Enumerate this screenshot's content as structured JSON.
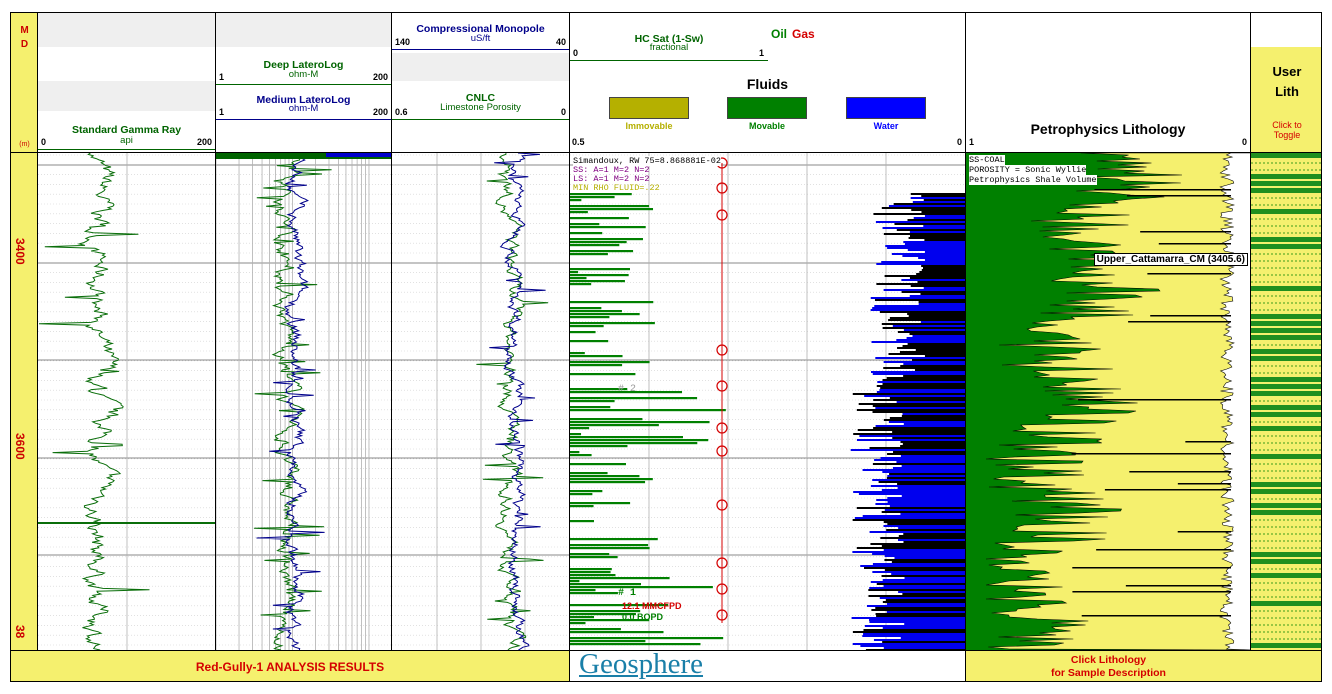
{
  "depth_track": {
    "md_letters": [
      "M",
      "D"
    ],
    "unit": "(m)",
    "labels": [
      "3400",
      "3600",
      "38"
    ]
  },
  "gamma": {
    "title": "Standard Gamma Ray",
    "unit": "api",
    "min": "0",
    "max": "200"
  },
  "resistivity": {
    "deep": {
      "title": "Deep LateroLog",
      "unit": "ohm-M",
      "min": "1",
      "max": "200"
    },
    "medium": {
      "title": "Medium LateroLog",
      "unit": "ohm-M",
      "min": "1",
      "max": "200"
    }
  },
  "porosity": {
    "sonic": {
      "title": "Compressional Monopole",
      "unit": "uS/ft",
      "min": "140",
      "max": "40"
    },
    "cnlc": {
      "title": "CNLC",
      "unit": "Limestone Porosity",
      "min": "0.6",
      "max": "0"
    }
  },
  "fluids": {
    "hcsat": {
      "title": "HC Sat (1-Sw)",
      "unit": "fractional",
      "min": "0",
      "max": "1"
    },
    "oil_label": "Oil",
    "gas_label": "Gas",
    "title": "Fluids",
    "legend": [
      {
        "label": "Immovable",
        "color": "#b5b000"
      },
      {
        "label": "Movable",
        "color": "#008000"
      },
      {
        "label": "Water",
        "color": "#0000ff"
      }
    ],
    "scale_min": "0.5",
    "scale_max": "0",
    "model_lines": [
      "Simandoux, RW 75=8.868881E-02",
      "SS: A=1 M=2 N=2",
      "LS: A=1 M=2 N=2",
      "MIN RHO FLUID=.22"
    ],
    "zone2": "# 2",
    "zone1": "# 1",
    "gas_rate_1": "12.1 MMCFPD",
    "gas_rate_2": "0.0 BOPD"
  },
  "petro": {
    "title": "Petrophysics Lithology",
    "min": "1",
    "max": "0",
    "legend_lines": [
      "SS-COAL",
      "POROSITY = Sonic Wyllie",
      "Petrophysics Shale Volume"
    ],
    "formation": "Upper_Cattamarra_CM (3405.6)"
  },
  "user_lith": {
    "title_1": "User",
    "title_2": "Lith",
    "hint_1": "Click to",
    "hint_2": "Toggle"
  },
  "footer": {
    "analysis": "Red-Gully-1 ANALYSIS RESULTS",
    "logo": "Geosphere",
    "click_1": "Click Lithology",
    "click_2": "for Sample Description"
  },
  "colors": {
    "yellow": "#f5f06e",
    "green": "#008000",
    "navy": "#00008b",
    "red": "#d40000"
  }
}
